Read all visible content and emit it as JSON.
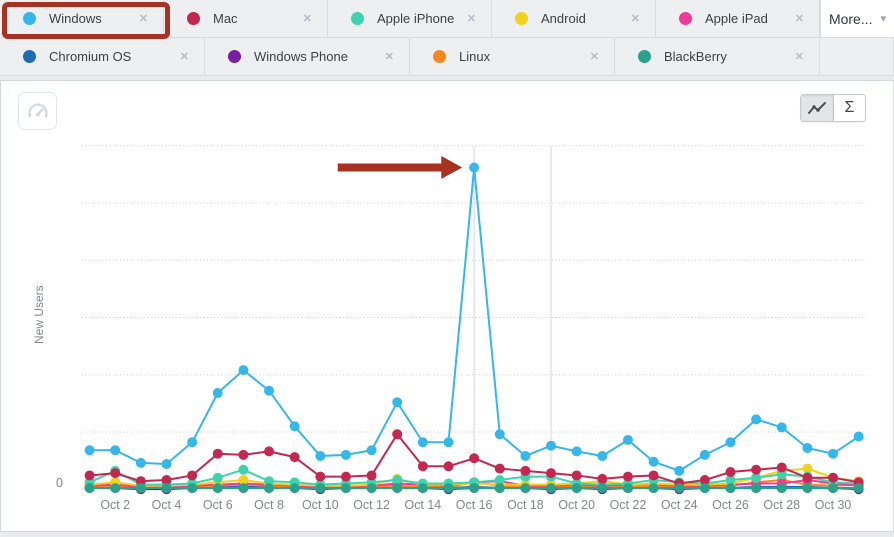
{
  "legend": {
    "close_glyph": "✕",
    "more_label": "More...",
    "caret": "▾",
    "row1": [
      {
        "label": "Windows",
        "color": "#35b7e9"
      },
      {
        "label": "Mac",
        "color": "#c22850"
      },
      {
        "label": "Apple iPhone",
        "color": "#3ed3ae"
      },
      {
        "label": "Android",
        "color": "#f2d01b"
      },
      {
        "label": "Apple iPad",
        "color": "#f03c96"
      }
    ],
    "row2": [
      {
        "label": "Chromium OS",
        "color": "#1b6db5"
      },
      {
        "label": "Windows Phone",
        "color": "#7a1fa2"
      },
      {
        "label": "Linux",
        "color": "#f6891e"
      },
      {
        "label": "BlackBerry",
        "color": "#2aa28b"
      }
    ],
    "highlighted_chip": "Windows"
  },
  "toolbar": {
    "sum_label": "Σ"
  },
  "colors": {
    "annotation_red": "#a93122",
    "gridline": "#c9ccd0",
    "baseline": "#b7bcbf",
    "vline_lavender": "#dcd8f1"
  },
  "chart_data": {
    "type": "line",
    "title": "",
    "xlabel": "",
    "ylabel": "New Users",
    "y_zero_label": "0",
    "ylim": [
      0,
      300
    ],
    "grid_step": 50,
    "grid_on": true,
    "legend_position": "top-chips",
    "x_dates": [
      "Oct 1",
      "Oct 2",
      "Oct 3",
      "Oct 4",
      "Oct 5",
      "Oct 6",
      "Oct 7",
      "Oct 8",
      "Oct 9",
      "Oct 10",
      "Oct 11",
      "Oct 12",
      "Oct 13",
      "Oct 14",
      "Oct 15",
      "Oct 16",
      "Oct 17",
      "Oct 18",
      "Oct 19",
      "Oct 20",
      "Oct 21",
      "Oct 22",
      "Oct 23",
      "Oct 24",
      "Oct 25",
      "Oct 26",
      "Oct 27",
      "Oct 28",
      "Oct 29",
      "Oct 30",
      "Oct 31"
    ],
    "x_ticks": [
      "Oct 2",
      "Oct 4",
      "Oct 6",
      "Oct 8",
      "Oct 10",
      "Oct 12",
      "Oct 14",
      "Oct 16",
      "Oct 18",
      "Oct 20",
      "Oct 22",
      "Oct 24",
      "Oct 26",
      "Oct 28",
      "Oct 30"
    ],
    "series": [
      {
        "name": "Windows",
        "color": "#35b7e9",
        "values": [
          34,
          34,
          23,
          22,
          41,
          84,
          104,
          86,
          55,
          29,
          30,
          34,
          76,
          41,
          41,
          281,
          48,
          29,
          38,
          33,
          29,
          43,
          24,
          16,
          30,
          41,
          61,
          54,
          36,
          31,
          46
        ]
      },
      {
        "name": "Mac",
        "color": "#c22850",
        "values": [
          12,
          14,
          7,
          8,
          12,
          31,
          30,
          33,
          28,
          11,
          11,
          12,
          48,
          20,
          20,
          27,
          18,
          16,
          14,
          12,
          9,
          11,
          12,
          5,
          8,
          15,
          17,
          19,
          10,
          10,
          6
        ]
      },
      {
        "name": "Apple iPhone",
        "color": "#3ed3ae",
        "values": [
          6,
          16,
          4,
          4,
          5,
          10,
          17,
          7,
          6,
          4,
          5,
          6,
          8,
          5,
          5,
          6,
          8,
          11,
          11,
          5,
          4,
          5,
          8,
          6,
          5,
          8,
          10,
          13,
          11,
          6,
          5
        ]
      },
      {
        "name": "Android",
        "color": "#f2d01b",
        "values": [
          4,
          6,
          3,
          3,
          4,
          6,
          8,
          5,
          4,
          3,
          3,
          4,
          9,
          4,
          4,
          5,
          4,
          4,
          4,
          5,
          7,
          4,
          5,
          4,
          4,
          5,
          10,
          16,
          18,
          10,
          7
        ]
      },
      {
        "name": "Apple iPad",
        "color": "#f03c96",
        "values": [
          3,
          4,
          2,
          2,
          3,
          4,
          5,
          4,
          3,
          2,
          3,
          3,
          5,
          4,
          3,
          6,
          7,
          3,
          3,
          4,
          3,
          4,
          4,
          3,
          3,
          4,
          5,
          5,
          8,
          5,
          3
        ]
      },
      {
        "name": "Chromium OS",
        "color": "#1b6db5",
        "values": [
          1,
          2,
          1,
          1,
          1,
          2,
          2,
          2,
          1,
          1,
          1,
          1,
          2,
          1,
          1,
          2,
          1,
          1,
          1,
          1,
          1,
          1,
          1,
          1,
          1,
          1,
          2,
          2,
          2,
          1,
          1
        ]
      },
      {
        "name": "Windows Phone",
        "color": "#7a1fa2",
        "values": [
          1,
          1,
          0,
          0,
          1,
          1,
          1,
          1,
          1,
          0,
          1,
          1,
          1,
          1,
          0,
          1,
          1,
          1,
          0,
          1,
          0,
          1,
          1,
          0,
          1,
          1,
          1,
          1,
          1,
          1,
          0
        ]
      },
      {
        "name": "Linux",
        "color": "#f6891e",
        "values": [
          2,
          3,
          2,
          2,
          2,
          3,
          4,
          3,
          2,
          2,
          2,
          2,
          3,
          2,
          2,
          6,
          3,
          2,
          2,
          2,
          2,
          2,
          2,
          2,
          2,
          3,
          6,
          8,
          4,
          3,
          4
        ]
      },
      {
        "name": "BlackBerry",
        "color": "#2aa28b",
        "values": [
          1,
          1,
          1,
          1,
          1,
          1,
          1,
          1,
          1,
          1,
          1,
          1,
          1,
          1,
          1,
          1,
          1,
          1,
          1,
          1,
          1,
          1,
          1,
          1,
          1,
          1,
          1,
          1,
          1,
          1,
          1
        ]
      }
    ],
    "render_order": [
      6,
      5,
      7,
      4,
      3,
      2,
      1,
      0,
      8
    ],
    "annotations": {
      "vertical_line_days": [
        16,
        19
      ],
      "arrow": {
        "series": "Windows",
        "date": "Oct 16",
        "value": 281
      },
      "legend_highlight": "Windows"
    }
  }
}
